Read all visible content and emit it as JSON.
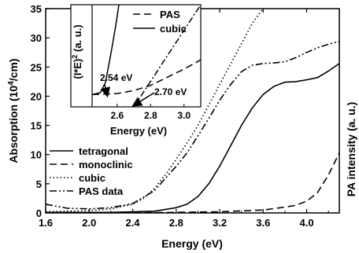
{
  "chart_data": [
    {
      "type": "line",
      "xlabel": "Energy (eV)",
      "ylabel_html": "Absorption (10<tspan dy=\"-5\" font-size=\"10\">4</tspan><tspan dy=\"5\">/cm)</tspan>",
      "ylabel": "Absorption (10^4/cm)",
      "ylabel_right": "PA intensity (a. u.)",
      "xlim": [
        1.6,
        4.3
      ],
      "ylim": [
        0,
        35
      ],
      "xticks": [
        1.6,
        2.0,
        2.4,
        2.8,
        3.2,
        3.6,
        4.0
      ],
      "xtick_labels": [
        "1.6",
        "2.0",
        "2.4",
        "2.8",
        "3.2",
        "3.6",
        "4.0"
      ],
      "yticks": [
        0,
        5,
        10,
        15,
        20,
        25,
        30,
        35
      ],
      "ytick_labels": [
        "0",
        "5",
        "10",
        "15",
        "20",
        "25",
        "30",
        "35"
      ],
      "legend_position": "lower-left",
      "series": [
        {
          "name": "tetragonal",
          "style": "solid",
          "points": [
            [
              1.6,
              0.1
            ],
            [
              2.2,
              0.1
            ],
            [
              2.6,
              0.3
            ],
            [
              2.8,
              0.9
            ],
            [
              2.9,
              1.5
            ],
            [
              3.0,
              2.8
            ],
            [
              3.1,
              5.0
            ],
            [
              3.2,
              8.0
            ],
            [
              3.3,
              11.5
            ],
            [
              3.4,
              15.0
            ],
            [
              3.5,
              18.0
            ],
            [
              3.6,
              20.3
            ],
            [
              3.7,
              21.7
            ],
            [
              3.8,
              22.4
            ],
            [
              3.9,
              22.5
            ],
            [
              4.0,
              22.8
            ],
            [
              4.1,
              23.2
            ],
            [
              4.2,
              24.3
            ],
            [
              4.3,
              25.6
            ]
          ]
        },
        {
          "name": "monoclinic",
          "style": "dashed",
          "points": [
            [
              1.6,
              0.0
            ],
            [
              2.6,
              0.05
            ],
            [
              3.2,
              0.2
            ],
            [
              3.6,
              0.5
            ],
            [
              3.8,
              1.0
            ],
            [
              3.9,
              1.3
            ],
            [
              4.0,
              2.0
            ],
            [
              4.1,
              3.5
            ],
            [
              4.2,
              6.5
            ],
            [
              4.3,
              10.3
            ]
          ]
        },
        {
          "name": "cubic",
          "style": "dotted",
          "points": [
            [
              1.6,
              0.2
            ],
            [
              2.0,
              0.4
            ],
            [
              2.2,
              0.7
            ],
            [
              2.4,
              1.5
            ],
            [
              2.5,
              2.5
            ],
            [
              2.6,
              4.2
            ],
            [
              2.7,
              6.5
            ],
            [
              2.8,
              9.2
            ],
            [
              2.9,
              12.0
            ],
            [
              3.0,
              15.0
            ],
            [
              3.1,
              18.5
            ],
            [
              3.2,
              22.0
            ],
            [
              3.3,
              25.5
            ],
            [
              3.4,
              29.0
            ],
            [
              3.5,
              32.5
            ],
            [
              3.6,
              35.0
            ]
          ]
        },
        {
          "name": "PAS data",
          "style": "dashdotdot",
          "points": [
            [
              1.6,
              1.5
            ],
            [
              1.8,
              0.8
            ],
            [
              2.0,
              0.7
            ],
            [
              2.2,
              0.9
            ],
            [
              2.4,
              1.6
            ],
            [
              2.6,
              3.8
            ],
            [
              2.8,
              8.0
            ],
            [
              2.9,
              10.3
            ],
            [
              3.0,
              13.2
            ],
            [
              3.1,
              16.2
            ],
            [
              3.2,
              19.3
            ],
            [
              3.3,
              22.0
            ],
            [
              3.4,
              24.2
            ],
            [
              3.5,
              25.3
            ],
            [
              3.6,
              25.6
            ],
            [
              3.7,
              25.7
            ],
            [
              3.8,
              25.9
            ],
            [
              3.9,
              26.6
            ],
            [
              4.0,
              27.5
            ],
            [
              4.1,
              28.3
            ],
            [
              4.2,
              28.9
            ],
            [
              4.3,
              29.4
            ]
          ]
        }
      ]
    },
    {
      "type": "line",
      "xlabel": "Energy (eV)",
      "ylabel": "(I*E)^2 (a. u.)",
      "xlim": [
        2.45,
        3.1
      ],
      "ylim": [
        0,
        1
      ],
      "xticks": [
        2.6,
        2.8,
        3.0
      ],
      "xtick_labels": [
        "2.6",
        "2.8",
        "3.0"
      ],
      "legend_position": "top-right",
      "series": [
        {
          "name": "PAS",
          "style": "dashed",
          "points": [
            [
              2.45,
              0.12
            ],
            [
              2.6,
              0.13
            ],
            [
              2.7,
              0.16
            ],
            [
              2.8,
              0.21
            ],
            [
              2.9,
              0.29
            ],
            [
              3.0,
              0.37
            ],
            [
              3.1,
              0.46
            ]
          ]
        },
        {
          "name": "cubic",
          "style": "solid",
          "points": [
            [
              2.45,
              0.12
            ],
            [
              2.5,
              0.14
            ],
            [
              2.53,
              0.24
            ],
            [
              2.56,
              0.5
            ],
            [
              2.59,
              0.78
            ],
            [
              2.61,
              1.0
            ]
          ]
        },
        {
          "name": "",
          "style": "dashdot",
          "points": [
            [
              2.7,
              0.0
            ],
            [
              2.8,
              0.25
            ],
            [
              2.9,
              0.5
            ],
            [
              3.0,
              0.75
            ],
            [
              3.1,
              1.0
            ]
          ]
        }
      ],
      "annotations": [
        {
          "text": "2.54 eV",
          "x": 2.54
        },
        {
          "text": "2.70 eV",
          "x": 2.7
        }
      ]
    }
  ]
}
